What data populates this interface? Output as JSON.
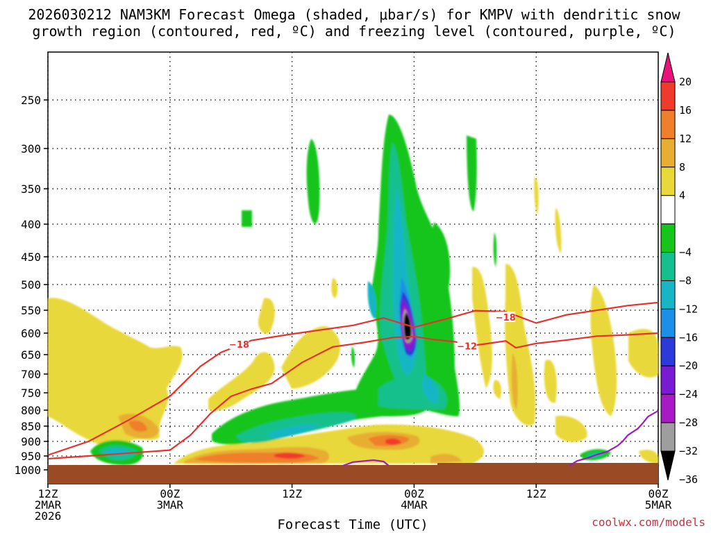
{
  "chart_data": {
    "type": "heatmap",
    "title_line1": "2026030212 NAM3KM Forecast Omega (shaded, μbar/s) for KMPV with dendritic snow",
    "title_line2": "growth region (contoured, red, ºC) and freezing level (contoured, purple, ºC)",
    "xlabel": "Forecast Time (UTC)",
    "credit": "coolwx.com/models",
    "y_ticks": [
      "250",
      "300",
      "350",
      "400",
      "450",
      "500",
      "550",
      "600",
      "650",
      "700",
      "750",
      "800",
      "850",
      "900",
      "950",
      "1000"
    ],
    "y_values": [
      250,
      300,
      350,
      400,
      450,
      500,
      550,
      600,
      650,
      700,
      750,
      800,
      850,
      900,
      950,
      1000
    ],
    "ylim_hpa": [
      200,
      1000
    ],
    "xlim_hours": [
      0,
      60
    ],
    "x_ticks": [
      {
        "hour": 0,
        "line1": "12Z",
        "line2": "2MAR",
        "line3": "2026"
      },
      {
        "hour": 12,
        "line1": "00Z",
        "line2": "3MAR",
        "line3": ""
      },
      {
        "hour": 24,
        "line1": "12Z",
        "line2": "",
        "line3": ""
      },
      {
        "hour": 36,
        "line1": "00Z",
        "line2": "4MAR",
        "line3": ""
      },
      {
        "hour": 48,
        "line1": "12Z",
        "line2": "",
        "line3": ""
      },
      {
        "hour": 60,
        "line1": "00Z",
        "line2": "5MAR",
        "line3": ""
      }
    ],
    "colorbar": {
      "labels": [
        "20",
        "16",
        "12",
        "8",
        "4",
        "−4",
        "−8",
        "−12",
        "−16",
        "−20",
        "−24",
        "−28",
        "−32",
        "−36"
      ],
      "bins": [
        {
          "from": 20,
          "to": 24,
          "color": "#e8127a"
        },
        {
          "from": 16,
          "to": 20,
          "color": "#f03a2c"
        },
        {
          "from": 12,
          "to": 16,
          "color": "#ef7f2a"
        },
        {
          "from": 8,
          "to": 12,
          "color": "#e8ae32"
        },
        {
          "from": 4,
          "to": 8,
          "color": "#e8d83a"
        },
        {
          "from": -4,
          "to": 4,
          "color": "#ffffff"
        },
        {
          "from": -8,
          "to": -4,
          "color": "#15c51a"
        },
        {
          "from": -12,
          "to": -8,
          "color": "#15c08c"
        },
        {
          "from": -16,
          "to": -12,
          "color": "#17b5c5"
        },
        {
          "from": -20,
          "to": -16,
          "color": "#1e8fe8"
        },
        {
          "from": -24,
          "to": -20,
          "color": "#2b3ad8"
        },
        {
          "from": -28,
          "to": -24,
          "color": "#7a1ad2"
        },
        {
          "from": -32,
          "to": -28,
          "color": "#a81ac4"
        },
        {
          "from": -36,
          "to": -32,
          "color": "#9e9e9e"
        },
        {
          "from": -40,
          "to": -36,
          "color": "#000000"
        }
      ]
    },
    "contours": {
      "dgz_upper": {
        "label": "−18",
        "color": "#e8312c",
        "points": [
          [
            0,
            947
          ],
          [
            4,
            900
          ],
          [
            8,
            830
          ],
          [
            12,
            760
          ],
          [
            15,
            680
          ],
          [
            17,
            645
          ],
          [
            20,
            617
          ],
          [
            24,
            602
          ],
          [
            30,
            583
          ],
          [
            33,
            567
          ],
          [
            36,
            587
          ],
          [
            39,
            570
          ],
          [
            42,
            551
          ],
          [
            45,
            553
          ],
          [
            48,
            578
          ],
          [
            51,
            560
          ],
          [
            54,
            550
          ],
          [
            57,
            541
          ],
          [
            60,
            535
          ]
        ]
      },
      "dgz_lower": {
        "label": "−12",
        "color": "#e8312c",
        "points": [
          [
            0,
            960
          ],
          [
            4,
            950
          ],
          [
            8,
            940
          ],
          [
            12,
            930
          ],
          [
            14,
            880
          ],
          [
            16,
            810
          ],
          [
            18,
            760
          ],
          [
            20,
            740
          ],
          [
            22,
            725
          ],
          [
            25,
            670
          ],
          [
            28,
            632
          ],
          [
            31,
            622
          ],
          [
            34,
            610
          ],
          [
            36,
            608
          ],
          [
            38,
            615
          ],
          [
            40,
            620
          ],
          [
            42,
            628
          ],
          [
            43,
            625
          ],
          [
            45,
            618
          ],
          [
            46,
            634
          ],
          [
            48,
            624
          ],
          [
            51,
            616
          ],
          [
            54,
            607
          ],
          [
            57,
            604
          ],
          [
            60,
            600
          ]
        ]
      },
      "freezing_level_1": {
        "color": "#9b1cc4",
        "points": [
          [
            29,
            985
          ],
          [
            30,
            972
          ],
          [
            32,
            965
          ],
          [
            33,
            970
          ],
          [
            33.5,
            985
          ]
        ]
      },
      "freezing_level_2": {
        "color": "#9b1cc4",
        "points": [
          [
            51.3,
            985
          ],
          [
            52,
            968
          ],
          [
            53,
            958
          ],
          [
            54,
            945
          ],
          [
            55,
            935
          ],
          [
            56,
            915
          ],
          [
            56.5,
            900
          ],
          [
            57,
            880
          ],
          [
            58,
            858
          ],
          [
            58.5,
            840
          ],
          [
            59,
            820
          ],
          [
            60,
            802
          ]
        ]
      }
    },
    "omega_features": [
      {
        "desc": "main upward motion column",
        "min_value": -36,
        "center_hour": 36,
        "center_hpa": 600
      },
      {
        "desc": "low-level rising band",
        "value_range": [
          -16,
          -4
        ],
        "hours": [
          16,
          40
        ],
        "hpa": [
          750,
          920
        ]
      },
      {
        "desc": "low-level sinking band",
        "value_range": [
          4,
          20
        ],
        "hours": [
          13,
          45
        ],
        "hpa": [
          880,
          970
        ]
      },
      {
        "desc": "early low-level rising cell",
        "value_range": [
          -16,
          -4
        ],
        "hours": [
          5,
          9
        ],
        "hpa": [
          900,
          975
        ]
      },
      {
        "desc": "late low-level rising cell",
        "value_range": [
          -12,
          -4
        ],
        "hours": [
          52,
          55
        ],
        "hpa": [
          940,
          965
        ]
      }
    ]
  }
}
